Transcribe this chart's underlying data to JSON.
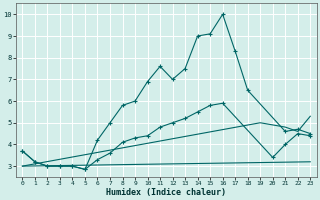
{
  "xlabel": "Humidex (Indice chaleur)",
  "ylabel": "",
  "bg_color": "#d4eeea",
  "grid_color": "#ffffff",
  "line_color": "#006666",
  "xlim": [
    -0.5,
    23.5
  ],
  "ylim": [
    2.5,
    10.5
  ],
  "xticks": [
    0,
    1,
    2,
    3,
    4,
    5,
    6,
    7,
    8,
    9,
    10,
    11,
    12,
    13,
    14,
    15,
    16,
    17,
    18,
    19,
    20,
    21,
    22,
    23
  ],
  "yticks": [
    3,
    4,
    5,
    6,
    7,
    8,
    9,
    10
  ],
  "series": [
    {
      "x": [
        0,
        1,
        2,
        3,
        4,
        5,
        6,
        7,
        8,
        9,
        10,
        11,
        12,
        13,
        14,
        15,
        16,
        17,
        18,
        21,
        22,
        23
      ],
      "y": [
        3.7,
        3.2,
        3.0,
        3.0,
        3.0,
        2.85,
        4.2,
        5.0,
        5.8,
        6.0,
        6.9,
        7.6,
        7.0,
        7.5,
        9.0,
        9.1,
        10.0,
        8.3,
        6.5,
        4.6,
        4.7,
        4.5
      ]
    },
    {
      "x": [
        0,
        1,
        2,
        3,
        4,
        5,
        6,
        7,
        8,
        9,
        10,
        11,
        12,
        13,
        14,
        15,
        16,
        20,
        21,
        22,
        23
      ],
      "y": [
        3.7,
        3.2,
        3.0,
        3.0,
        3.0,
        2.85,
        3.3,
        3.6,
        4.1,
        4.3,
        4.4,
        4.8,
        5.0,
        5.2,
        5.5,
        5.8,
        5.9,
        3.4,
        4.0,
        4.5,
        4.4
      ]
    },
    {
      "x": [
        0,
        19,
        21,
        22,
        23
      ],
      "y": [
        3.0,
        5.0,
        4.8,
        4.6,
        5.3
      ]
    },
    {
      "x": [
        0,
        23
      ],
      "y": [
        3.0,
        3.2
      ]
    }
  ]
}
